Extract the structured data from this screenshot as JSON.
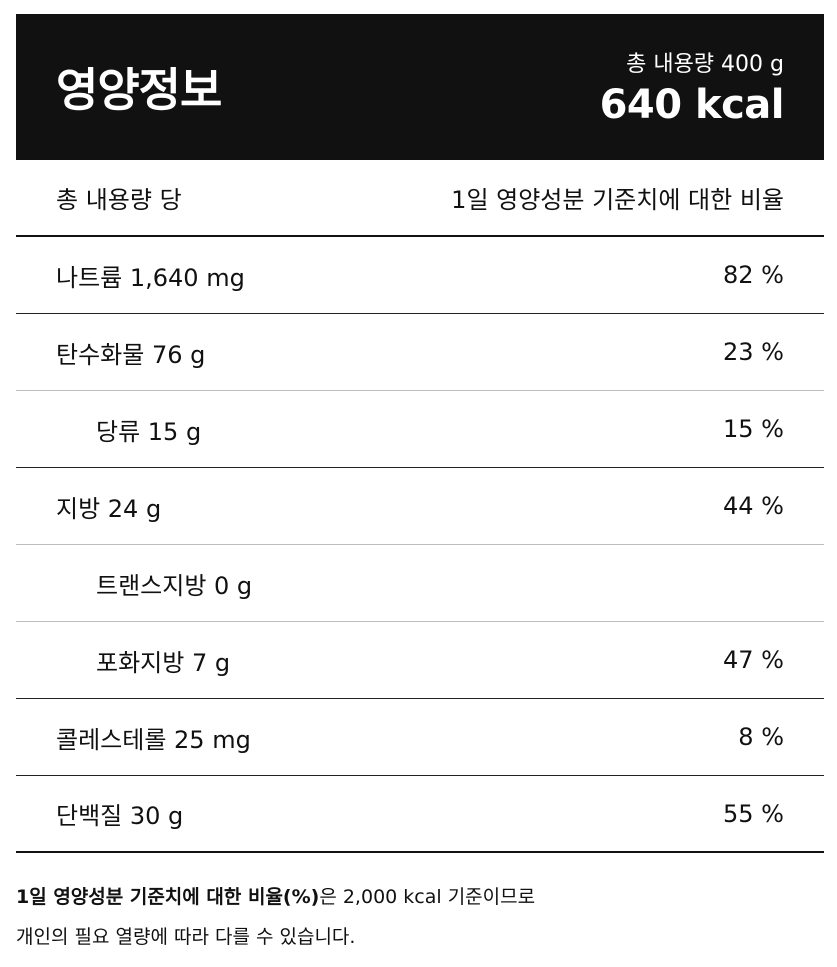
{
  "header": {
    "title": "영양정보",
    "total_label": "총 내용량 400 g",
    "kcal": "640 kcal"
  },
  "table_header": {
    "left": "총 내용량 당",
    "right": "1일 영양성분 기준치에 대한 비율"
  },
  "rows": [
    {
      "label": "나트륨 1,640 mg",
      "percent": "82 %"
    },
    {
      "label": "탄수화물 76 g",
      "percent": "23 %"
    },
    {
      "label": "당류 15 g",
      "percent": "15 %"
    },
    {
      "label": "지방 24 g",
      "percent": "44 %"
    },
    {
      "label": "트랜스지방 0 g",
      "percent": ""
    },
    {
      "label": "포화지방 7 g",
      "percent": "47 %"
    },
    {
      "label": "콜레스테롤 25 mg",
      "percent": "8 %"
    },
    {
      "label": "단백질 30 g",
      "percent": "55 %"
    }
  ],
  "footnote": {
    "bold": "1일 영양성분 기준치에 대한 비율(%)",
    "line1_rest": "은 2,000 kcal 기준이므로",
    "line2": "개인의 필요 열량에 따라 다를 수 있습니다."
  }
}
